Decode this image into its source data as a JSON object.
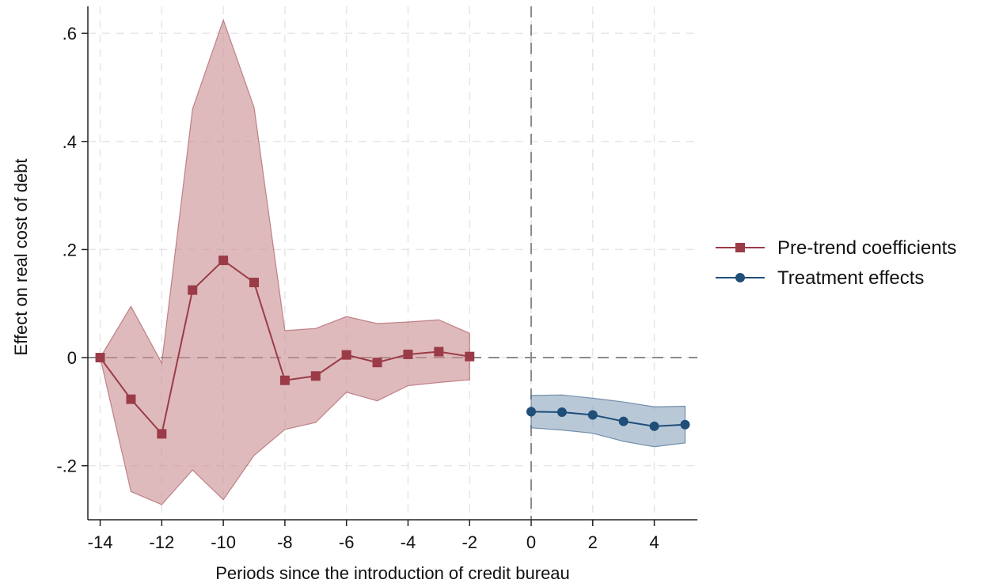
{
  "chart_data": {
    "type": "line",
    "xlabel": "Periods since the introduction of credit bureau",
    "ylabel": "Effect on real cost of debt",
    "xlim": [
      -14.4,
      5.4
    ],
    "ylim": [
      -0.3,
      0.65
    ],
    "x_ticks": [
      -14,
      -12,
      -10,
      -8,
      -6,
      -4,
      -2,
      0,
      2,
      4
    ],
    "x_tick_labels": [
      "-14",
      "-12",
      "-10",
      "-8",
      "-6",
      "-4",
      "-2",
      "0",
      "2",
      "4"
    ],
    "y_ticks": [
      -0.2,
      0,
      0.2,
      0.4,
      0.6
    ],
    "y_tick_labels": [
      "-.2",
      "0",
      ".2",
      ".4",
      ".6"
    ],
    "grid": true,
    "reference_lines": [
      {
        "axis": "y",
        "value": 0,
        "style": "dashed"
      },
      {
        "axis": "x",
        "value": 0,
        "style": "dashed"
      }
    ],
    "legend_position": "right",
    "series": [
      {
        "name": "Pre-trend coefficients",
        "marker": "square",
        "color": "#9b3b47",
        "band_color": "#c98f93",
        "x": [
          -14,
          -13,
          -12,
          -11,
          -10,
          -9,
          -8,
          -7,
          -6,
          -5,
          -4,
          -3,
          -2
        ],
        "values": [
          0.0,
          -0.077,
          -0.141,
          0.125,
          0.18,
          0.139,
          -0.042,
          -0.034,
          0.005,
          -0.009,
          0.006,
          0.011,
          0.002
        ],
        "lower": [
          0.0,
          -0.248,
          -0.272,
          -0.208,
          -0.263,
          -0.181,
          -0.133,
          -0.12,
          -0.064,
          -0.08,
          -0.052,
          -0.046,
          -0.041
        ],
        "upper": [
          0.0,
          0.095,
          -0.01,
          0.46,
          0.625,
          0.463,
          0.05,
          0.054,
          0.076,
          0.063,
          0.066,
          0.07,
          0.045
        ]
      },
      {
        "name": "Treatment effects",
        "marker": "circle",
        "color": "#1f4e79",
        "band_color": "#8ea6be",
        "x": [
          0,
          1,
          2,
          3,
          4,
          5
        ],
        "values": [
          -0.1,
          -0.101,
          -0.106,
          -0.118,
          -0.127,
          -0.124
        ],
        "lower": [
          -0.13,
          -0.134,
          -0.14,
          -0.155,
          -0.165,
          -0.158
        ],
        "upper": [
          -0.07,
          -0.069,
          -0.075,
          -0.082,
          -0.091,
          -0.09
        ]
      }
    ]
  }
}
